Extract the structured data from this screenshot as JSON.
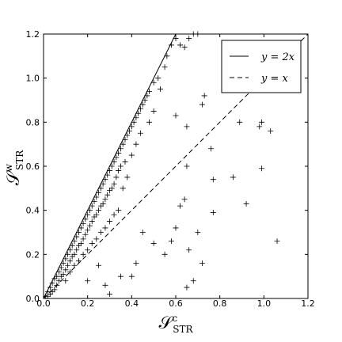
{
  "chart_data": {
    "type": "scatter",
    "xlabel": {
      "symbol": "𝒮",
      "superscript": "c",
      "subscript": "STR"
    },
    "ylabel": {
      "symbol": "𝒮",
      "superscript": "w",
      "subscript": "STR"
    },
    "xlim": [
      0,
      1.2
    ],
    "ylim": [
      0,
      1.2
    ],
    "xticks": [
      {
        "value": 0,
        "label": "0.0"
      },
      0.2,
      0.4,
      0.6,
      0.8,
      {
        "value": 1,
        "label": "1.0"
      },
      1.2
    ],
    "yticks": [
      {
        "value": 0,
        "label": "0.0"
      },
      0.2,
      0.4,
      0.6,
      0.8,
      {
        "value": 1,
        "label": "1.0"
      },
      1.2
    ],
    "legend": "upper right",
    "series": [
      {
        "style": "marker",
        "marker": "+",
        "color": "#000000",
        "x": [
          0.01,
          0.02,
          0.02,
          0.03,
          0.03,
          0.04,
          0.04,
          0.05,
          0.05,
          0.06,
          0.06,
          0.07,
          0.07,
          0.08,
          0.08,
          0.09,
          0.09,
          0.1,
          0.1,
          0.1,
          0.11,
          0.11,
          0.12,
          0.12,
          0.12,
          0.13,
          0.13,
          0.14,
          0.14,
          0.14,
          0.15,
          0.15,
          0.16,
          0.16,
          0.16,
          0.17,
          0.17,
          0.18,
          0.18,
          0.18,
          0.19,
          0.19,
          0.2,
          0.2,
          0.2,
          0.21,
          0.21,
          0.22,
          0.22,
          0.22,
          0.23,
          0.23,
          0.24,
          0.24,
          0.24,
          0.25,
          0.25,
          0.26,
          0.26,
          0.26,
          0.27,
          0.27,
          0.28,
          0.28,
          0.28,
          0.29,
          0.29,
          0.3,
          0.3,
          0.3,
          0.31,
          0.31,
          0.32,
          0.32,
          0.32,
          0.33,
          0.33,
          0.34,
          0.34,
          0.34,
          0.35,
          0.35,
          0.36,
          0.36,
          0.37,
          0.37,
          0.38,
          0.38,
          0.39,
          0.4,
          0.4,
          0.41,
          0.42,
          0.42,
          0.43,
          0.44,
          0.44,
          0.45,
          0.46,
          0.47,
          0.48,
          0.48,
          0.5,
          0.5,
          0.52,
          0.53,
          0.55,
          0.56,
          0.58,
          0.6,
          0.62,
          0.64,
          0.66,
          0.68,
          0.7,
          0.73,
          0.72,
          0.65,
          0.6,
          0.3,
          0.35,
          0.4,
          0.42,
          0.45,
          0.5,
          0.55,
          0.58,
          0.6,
          0.62,
          0.64,
          0.65,
          0.66,
          0.68,
          0.7,
          0.72,
          0.76,
          0.77,
          0.77,
          0.86,
          0.89,
          0.92,
          0.98,
          0.99,
          0.99,
          1.03,
          1.06,
          0.65,
          0.28,
          0.2,
          0.25
        ],
        "values": [
          0.01,
          0.03,
          0.01,
          0.05,
          0.02,
          0.07,
          0.03,
          0.09,
          0.04,
          0.1,
          0.06,
          0.12,
          0.08,
          0.14,
          0.1,
          0.16,
          0.11,
          0.18,
          0.13,
          0.08,
          0.2,
          0.15,
          0.22,
          0.17,
          0.12,
          0.24,
          0.19,
          0.26,
          0.2,
          0.15,
          0.28,
          0.22,
          0.3,
          0.24,
          0.17,
          0.32,
          0.25,
          0.34,
          0.27,
          0.2,
          0.36,
          0.29,
          0.38,
          0.31,
          0.22,
          0.4,
          0.33,
          0.42,
          0.35,
          0.25,
          0.44,
          0.37,
          0.46,
          0.38,
          0.27,
          0.48,
          0.4,
          0.5,
          0.42,
          0.3,
          0.52,
          0.43,
          0.54,
          0.45,
          0.32,
          0.56,
          0.47,
          0.58,
          0.49,
          0.35,
          0.6,
          0.5,
          0.62,
          0.52,
          0.38,
          0.64,
          0.55,
          0.66,
          0.58,
          0.4,
          0.68,
          0.6,
          0.7,
          0.5,
          0.72,
          0.62,
          0.74,
          0.55,
          0.76,
          0.78,
          0.65,
          0.8,
          0.82,
          0.7,
          0.84,
          0.86,
          0.75,
          0.88,
          0.9,
          0.92,
          0.94,
          0.8,
          0.98,
          0.85,
          1.0,
          0.95,
          1.05,
          1.1,
          1.15,
          1.18,
          1.15,
          1.14,
          1.18,
          1.2,
          1.2,
          0.92,
          0.88,
          0.78,
          0.83,
          0.02,
          0.1,
          0.1,
          0.16,
          0.3,
          0.25,
          0.2,
          0.26,
          0.32,
          0.42,
          0.45,
          0.6,
          0.22,
          0.08,
          0.3,
          0.16,
          0.68,
          0.54,
          0.39,
          0.55,
          0.8,
          0.43,
          0.78,
          0.8,
          0.59,
          0.76,
          0.26,
          0.05,
          0.06,
          0.08,
          0.15
        ]
      },
      {
        "name": "y = 2x",
        "style": "solid",
        "color": "#000000",
        "x": [
          0,
          0.6
        ],
        "values": [
          0,
          1.2
        ]
      },
      {
        "name": "y = x",
        "style": "dashed",
        "color": "#000000",
        "x": [
          0,
          1.2
        ],
        "values": [
          0,
          1.2
        ]
      }
    ]
  }
}
